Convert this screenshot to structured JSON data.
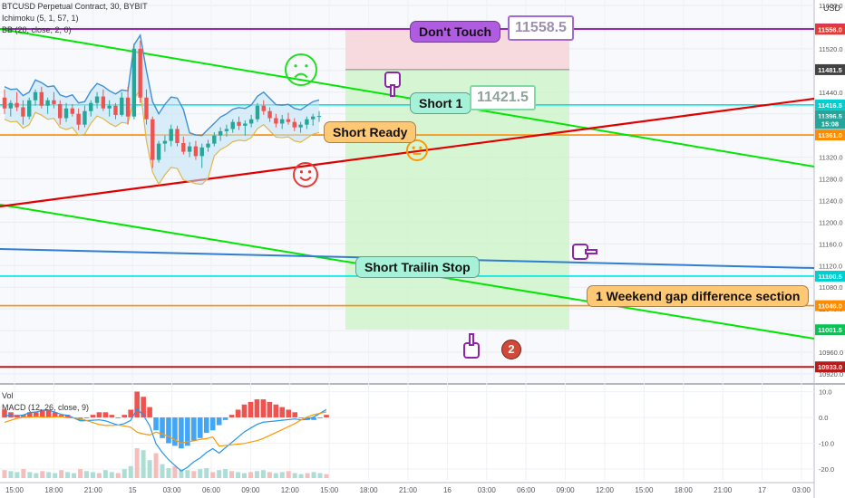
{
  "header": {
    "symbol_line": "BTCUSD Perpetual Contract, 30, BYBIT",
    "indicator_1": "Ichimoku (5, 1, 57, 1)",
    "indicator_2": "BB (20, close, 2, 0)",
    "currency": "USD"
  },
  "lower_pane": {
    "vol_label": "Vol",
    "macd_label": "MACD (12, 26, close, 9)"
  },
  "annotations": {
    "dont_touch": "Don't Touch",
    "dont_touch_price": "11558.5",
    "short_1": "Short 1",
    "short_1_price": "11421.5",
    "short_ready": "Short Ready",
    "short_trailing_stop": "Short Trailin Stop",
    "weekend_gap": "1 Weekend gap difference section",
    "badge_2": "2"
  },
  "colors": {
    "purple": "#9c27b0",
    "green_line": "#00e600",
    "red_line": "#e00000",
    "blue_line": "#2f7fd0",
    "cyan_line": "#00e5e5",
    "orange_line": "#ff8c00",
    "dark_red_line": "#b71c1c",
    "candle_up": "#26a69a",
    "candle_down": "#ef5350",
    "callout_green": "#a5f2d8",
    "callout_orange": "#ffc875",
    "callout_purple": "#b05ce0"
  },
  "chart_data": {
    "type": "candlestick",
    "title": "BTCUSD Perpetual Contract, 30, BYBIT",
    "y_axis_ticks": [
      "11600.0",
      "11560.0",
      "11520.0",
      "11480.0",
      "11440.0",
      "11400.0",
      "11360.0",
      "11320.0",
      "11280.0",
      "11240.0",
      "11200.0",
      "11160.0",
      "11120.0",
      "11080.0",
      "11040.0",
      "11000.0",
      "10960.0",
      "10920.0"
    ],
    "x_axis_ticks": [
      "15:00",
      "18:00",
      "21:00",
      "15",
      "03:00",
      "06:00",
      "09:00",
      "12:00",
      "15:00",
      "18:00",
      "21:00",
      "16",
      "03:00",
      "06:00",
      "09:00",
      "12:00",
      "15:00",
      "18:00",
      "21:00",
      "17",
      "03:00"
    ],
    "price_labels": [
      {
        "text": "11556.5",
        "value": 11556.5,
        "color": "#9c27b0"
      },
      {
        "text": "11556.0",
        "value": 11556.0,
        "color": "#e53935"
      },
      {
        "text": "11481.5",
        "value": 11481.5,
        "color": "#424242"
      },
      {
        "text": "11416.5",
        "value": 11416.5,
        "color": "#00cfcf"
      },
      {
        "text": "11396.5",
        "value": 11396.5,
        "color": "#26a69a"
      },
      {
        "text": "15:08",
        "value": 11382,
        "color": "#26a69a"
      },
      {
        "text": "11361.0",
        "value": 11361.0,
        "color": "#ff8c00"
      },
      {
        "text": "11100.5",
        "value": 11100.5,
        "color": "#00cfcf"
      },
      {
        "text": "11046.0",
        "value": 11046.0,
        "color": "#ff8c00"
      },
      {
        "text": "11001.5",
        "value": 11001.5,
        "color": "#00c853"
      },
      {
        "text": "10933.0",
        "value": 10933.0,
        "color": "#b71c1c"
      }
    ],
    "ohlc": [
      [
        11430,
        11445,
        11400,
        11410
      ],
      [
        11410,
        11425,
        11395,
        11420
      ],
      [
        11420,
        11440,
        11405,
        11412
      ],
      [
        11412,
        11425,
        11380,
        11395
      ],
      [
        11395,
        11430,
        11390,
        11425
      ],
      [
        11425,
        11445,
        11415,
        11440
      ],
      [
        11440,
        11450,
        11410,
        11415
      ],
      [
        11415,
        11430,
        11400,
        11425
      ],
      [
        11425,
        11440,
        11410,
        11418
      ],
      [
        11418,
        11425,
        11380,
        11392
      ],
      [
        11392,
        11420,
        11385,
        11410
      ],
      [
        11410,
        11418,
        11395,
        11400
      ],
      [
        11400,
        11410,
        11370,
        11380
      ],
      [
        11380,
        11415,
        11375,
        11405
      ],
      [
        11405,
        11425,
        11395,
        11420
      ],
      [
        11420,
        11440,
        11410,
        11432
      ],
      [
        11432,
        11445,
        11405,
        11410
      ],
      [
        11410,
        11425,
        11395,
        11415
      ],
      [
        11415,
        11420,
        11390,
        11398
      ],
      [
        11398,
        11440,
        11395,
        11430
      ],
      [
        11430,
        11450,
        11380,
        11395
      ],
      [
        11395,
        11530,
        11390,
        11520
      ],
      [
        11520,
        11535,
        11420,
        11430
      ],
      [
        11430,
        11445,
        11380,
        11390
      ],
      [
        11390,
        11395,
        11300,
        11315
      ],
      [
        11315,
        11350,
        11310,
        11345
      ],
      [
        11345,
        11360,
        11330,
        11350
      ],
      [
        11350,
        11380,
        11340,
        11372
      ],
      [
        11372,
        11378,
        11340,
        11346
      ],
      [
        11346,
        11358,
        11325,
        11330
      ],
      [
        11330,
        11348,
        11320,
        11340
      ],
      [
        11340,
        11350,
        11315,
        11322
      ],
      [
        11322,
        11345,
        11300,
        11338
      ],
      [
        11338,
        11352,
        11330,
        11345
      ],
      [
        11345,
        11366,
        11340,
        11360
      ],
      [
        11360,
        11375,
        11350,
        11368
      ],
      [
        11368,
        11380,
        11358,
        11372
      ],
      [
        11372,
        11390,
        11365,
        11385
      ],
      [
        11385,
        11395,
        11370,
        11378
      ],
      [
        11378,
        11388,
        11360,
        11382
      ],
      [
        11382,
        11398,
        11375,
        11390
      ],
      [
        11390,
        11420,
        11385,
        11415
      ],
      [
        11415,
        11425,
        11398,
        11405
      ],
      [
        11405,
        11412,
        11385,
        11392
      ],
      [
        11392,
        11400,
        11375,
        11382
      ],
      [
        11382,
        11398,
        11372,
        11390
      ],
      [
        11390,
        11402,
        11380,
        11385
      ],
      [
        11385,
        11392,
        11368,
        11375
      ],
      [
        11375,
        11385,
        11365,
        11380
      ],
      [
        11380,
        11395,
        11372,
        11390
      ],
      [
        11390,
        11400,
        11378,
        11395
      ],
      [
        11395,
        11405,
        11385,
        11396
      ]
    ],
    "volume": [
      8,
      7,
      6,
      9,
      6,
      5,
      7,
      6,
      5,
      8,
      6,
      5,
      9,
      7,
      6,
      5,
      8,
      6,
      5,
      9,
      12,
      30,
      28,
      18,
      25,
      14,
      10,
      12,
      9,
      8,
      7,
      9,
      10,
      6,
      8,
      9,
      7,
      6,
      5,
      6,
      7,
      8,
      6,
      5,
      6,
      7,
      5,
      4,
      5,
      6,
      5,
      4
    ],
    "macd_hist": [
      3,
      2,
      1,
      1,
      2,
      2,
      3,
      3,
      2,
      1,
      1,
      0,
      -1,
      0,
      1,
      2,
      2,
      1,
      0,
      1,
      3,
      10,
      8,
      4,
      -5,
      -8,
      -10,
      -11,
      -12,
      -11,
      -9,
      -8,
      -6,
      -5,
      -3,
      -1,
      1,
      3,
      5,
      6,
      7,
      7,
      6,
      5,
      4,
      3,
      2,
      0,
      -1,
      -1,
      0,
      1
    ],
    "macd_y_ticks": [
      "10.0",
      "0.0",
      "-10.0",
      "-20.0"
    ]
  }
}
